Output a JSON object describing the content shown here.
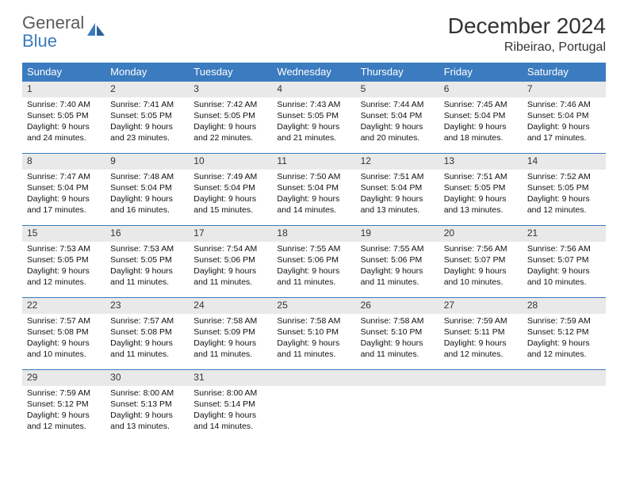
{
  "logo": {
    "word1": "General",
    "word2": "Blue"
  },
  "title": "December 2024",
  "location": "Ribeirao, Portugal",
  "colors": {
    "header_bg": "#3b7bbf",
    "header_text": "#ffffff",
    "daynum_bg": "#e9e9e9",
    "border": "#3b7bbf",
    "body_text": "#111111",
    "page_bg": "#ffffff"
  },
  "dow": [
    "Sunday",
    "Monday",
    "Tuesday",
    "Wednesday",
    "Thursday",
    "Friday",
    "Saturday"
  ],
  "weeks": [
    [
      {
        "n": "1",
        "sr": "7:40 AM",
        "ss": "5:05 PM",
        "dl": "9 hours and 24 minutes."
      },
      {
        "n": "2",
        "sr": "7:41 AM",
        "ss": "5:05 PM",
        "dl": "9 hours and 23 minutes."
      },
      {
        "n": "3",
        "sr": "7:42 AM",
        "ss": "5:05 PM",
        "dl": "9 hours and 22 minutes."
      },
      {
        "n": "4",
        "sr": "7:43 AM",
        "ss": "5:05 PM",
        "dl": "9 hours and 21 minutes."
      },
      {
        "n": "5",
        "sr": "7:44 AM",
        "ss": "5:04 PM",
        "dl": "9 hours and 20 minutes."
      },
      {
        "n": "6",
        "sr": "7:45 AM",
        "ss": "5:04 PM",
        "dl": "9 hours and 18 minutes."
      },
      {
        "n": "7",
        "sr": "7:46 AM",
        "ss": "5:04 PM",
        "dl": "9 hours and 17 minutes."
      }
    ],
    [
      {
        "n": "8",
        "sr": "7:47 AM",
        "ss": "5:04 PM",
        "dl": "9 hours and 17 minutes."
      },
      {
        "n": "9",
        "sr": "7:48 AM",
        "ss": "5:04 PM",
        "dl": "9 hours and 16 minutes."
      },
      {
        "n": "10",
        "sr": "7:49 AM",
        "ss": "5:04 PM",
        "dl": "9 hours and 15 minutes."
      },
      {
        "n": "11",
        "sr": "7:50 AM",
        "ss": "5:04 PM",
        "dl": "9 hours and 14 minutes."
      },
      {
        "n": "12",
        "sr": "7:51 AM",
        "ss": "5:04 PM",
        "dl": "9 hours and 13 minutes."
      },
      {
        "n": "13",
        "sr": "7:51 AM",
        "ss": "5:05 PM",
        "dl": "9 hours and 13 minutes."
      },
      {
        "n": "14",
        "sr": "7:52 AM",
        "ss": "5:05 PM",
        "dl": "9 hours and 12 minutes."
      }
    ],
    [
      {
        "n": "15",
        "sr": "7:53 AM",
        "ss": "5:05 PM",
        "dl": "9 hours and 12 minutes."
      },
      {
        "n": "16",
        "sr": "7:53 AM",
        "ss": "5:05 PM",
        "dl": "9 hours and 11 minutes."
      },
      {
        "n": "17",
        "sr": "7:54 AM",
        "ss": "5:06 PM",
        "dl": "9 hours and 11 minutes."
      },
      {
        "n": "18",
        "sr": "7:55 AM",
        "ss": "5:06 PM",
        "dl": "9 hours and 11 minutes."
      },
      {
        "n": "19",
        "sr": "7:55 AM",
        "ss": "5:06 PM",
        "dl": "9 hours and 11 minutes."
      },
      {
        "n": "20",
        "sr": "7:56 AM",
        "ss": "5:07 PM",
        "dl": "9 hours and 10 minutes."
      },
      {
        "n": "21",
        "sr": "7:56 AM",
        "ss": "5:07 PM",
        "dl": "9 hours and 10 minutes."
      }
    ],
    [
      {
        "n": "22",
        "sr": "7:57 AM",
        "ss": "5:08 PM",
        "dl": "9 hours and 10 minutes."
      },
      {
        "n": "23",
        "sr": "7:57 AM",
        "ss": "5:08 PM",
        "dl": "9 hours and 11 minutes."
      },
      {
        "n": "24",
        "sr": "7:58 AM",
        "ss": "5:09 PM",
        "dl": "9 hours and 11 minutes."
      },
      {
        "n": "25",
        "sr": "7:58 AM",
        "ss": "5:10 PM",
        "dl": "9 hours and 11 minutes."
      },
      {
        "n": "26",
        "sr": "7:58 AM",
        "ss": "5:10 PM",
        "dl": "9 hours and 11 minutes."
      },
      {
        "n": "27",
        "sr": "7:59 AM",
        "ss": "5:11 PM",
        "dl": "9 hours and 12 minutes."
      },
      {
        "n": "28",
        "sr": "7:59 AM",
        "ss": "5:12 PM",
        "dl": "9 hours and 12 minutes."
      }
    ],
    [
      {
        "n": "29",
        "sr": "7:59 AM",
        "ss": "5:12 PM",
        "dl": "9 hours and 12 minutes."
      },
      {
        "n": "30",
        "sr": "8:00 AM",
        "ss": "5:13 PM",
        "dl": "9 hours and 13 minutes."
      },
      {
        "n": "31",
        "sr": "8:00 AM",
        "ss": "5:14 PM",
        "dl": "9 hours and 14 minutes."
      },
      null,
      null,
      null,
      null
    ]
  ],
  "labels": {
    "sunrise": "Sunrise: ",
    "sunset": "Sunset: ",
    "daylight": "Daylight: "
  }
}
